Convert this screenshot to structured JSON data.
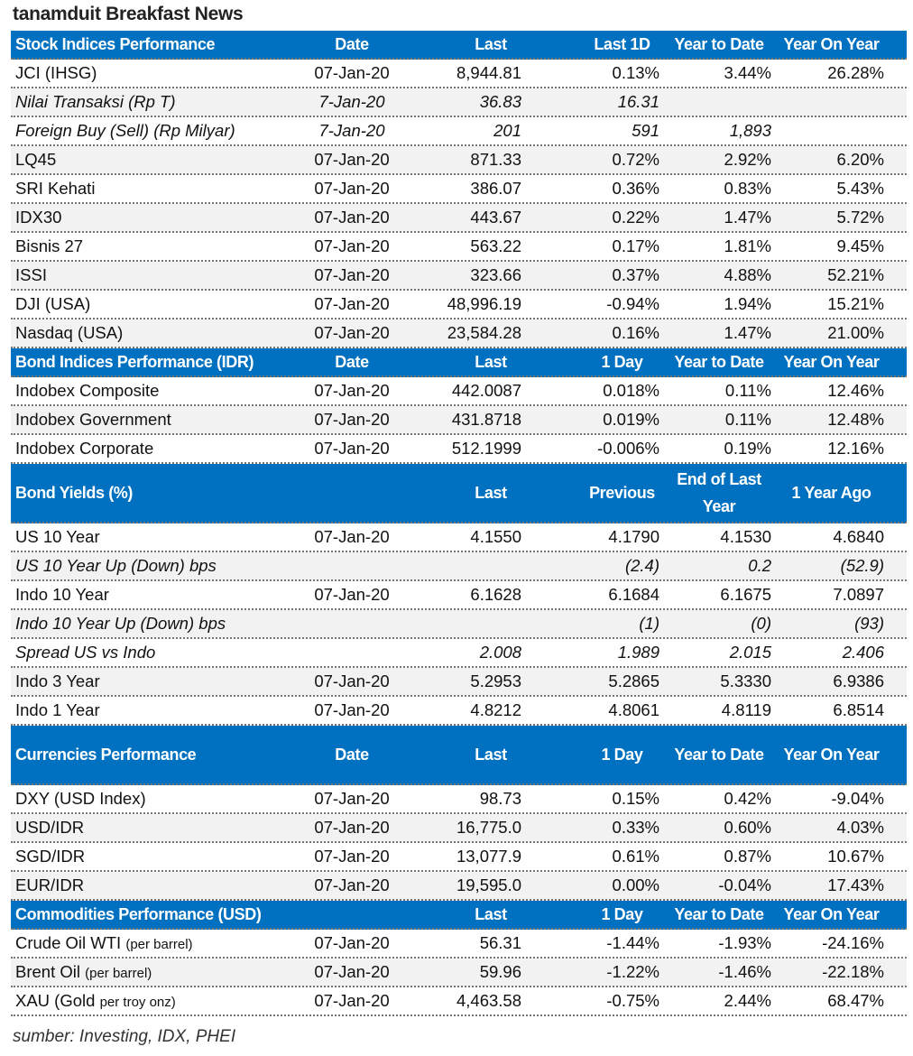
{
  "title": "tanamduit Breakfast News",
  "accent_color": "#0070c0",
  "sections": [
    {
      "header": [
        "Stock Indices Performance",
        "Date",
        "Last",
        "Last 1D",
        "Year to Date",
        "Year On Year"
      ],
      "header_height": "short",
      "rows": [
        {
          "cells": [
            "JCI (IHSG)",
            "07-Jan-20",
            "8,944.81",
            "0.13%",
            "3.44%",
            "26.28%"
          ]
        },
        {
          "italic": true,
          "cells": [
            "Nilai Transaksi (Rp T)",
            "7-Jan-20",
            "36.83",
            "16.31",
            "",
            ""
          ]
        },
        {
          "italic": true,
          "cells": [
            "Foreign Buy (Sell) (Rp Milyar)",
            "7-Jan-20",
            "201",
            "591",
            "1,893",
            ""
          ]
        },
        {
          "cells": [
            "LQ45",
            "07-Jan-20",
            "871.33",
            "0.72%",
            "2.92%",
            "6.20%"
          ]
        },
        {
          "cells": [
            "SRI Kehati",
            "07-Jan-20",
            "386.07",
            "0.36%",
            "0.83%",
            "5.43%"
          ]
        },
        {
          "cells": [
            "IDX30",
            "07-Jan-20",
            "443.67",
            "0.22%",
            "1.47%",
            "5.72%"
          ]
        },
        {
          "cells": [
            "Bisnis 27",
            "07-Jan-20",
            "563.22",
            "0.17%",
            "1.81%",
            "9.45%"
          ]
        },
        {
          "cells": [
            "ISSI",
            "07-Jan-20",
            "323.66",
            "0.37%",
            "4.88%",
            "52.21%"
          ]
        },
        {
          "cells": [
            "DJI (USA)",
            "07-Jan-20",
            "48,996.19",
            "-0.94%",
            "1.94%",
            "15.21%"
          ]
        },
        {
          "cells": [
            "Nasdaq (USA)",
            "07-Jan-20",
            "23,584.28",
            "0.16%",
            "1.47%",
            "21.00%"
          ]
        }
      ]
    },
    {
      "header": [
        "Bond Indices Performance (IDR)",
        "Date",
        "Last",
        "1 Day",
        "Year to Date",
        "Year On Year"
      ],
      "header_height": "short",
      "rows": [
        {
          "cells": [
            "Indobex Composite",
            "07-Jan-20",
            "442.0087",
            "0.018%",
            "0.11%",
            "12.46%"
          ]
        },
        {
          "cells": [
            "Indobex Government",
            "07-Jan-20",
            "431.8718",
            "0.019%",
            "0.11%",
            "12.48%"
          ]
        },
        {
          "cells": [
            "Indobex Corporate",
            "07-Jan-20",
            "512.1999",
            "-0.006%",
            "0.19%",
            "12.16%"
          ]
        }
      ]
    },
    {
      "header": [
        "Bond Yields (%)",
        "",
        "Last",
        "Previous",
        "End of Last Year",
        "1 Year Ago"
      ],
      "header_height": "tall",
      "rows": [
        {
          "cells": [
            "US 10 Year",
            "07-Jan-20",
            "4.1550",
            "4.1790",
            "4.1530",
            "4.6840"
          ]
        },
        {
          "italic": true,
          "cells": [
            "US 10 Year Up (Down) bps",
            "",
            "",
            "(2.4)",
            "0.2",
            "(52.9)"
          ]
        },
        {
          "cells": [
            "Indo 10 Year",
            "07-Jan-20",
            "6.1628",
            "6.1684",
            "6.1675",
            "7.0897"
          ]
        },
        {
          "italic": true,
          "cells": [
            "Indo 10 Year Up (Down) bps",
            "",
            "",
            "(1)",
            "(0)",
            "(93)"
          ]
        },
        {
          "italic": true,
          "cells": [
            "Spread US vs Indo",
            "",
            "2.008",
            "1.989",
            "2.015",
            "2.406"
          ]
        },
        {
          "cells": [
            "Indo 3 Year",
            "07-Jan-20",
            "5.2953",
            "5.2865",
            "5.3330",
            "6.9386"
          ]
        },
        {
          "cells": [
            "Indo 1 Year",
            "07-Jan-20",
            "4.8212",
            "4.8061",
            "4.8119",
            "6.8514"
          ]
        }
      ]
    },
    {
      "header": [
        "Currencies Performance",
        "Date",
        "Last",
        "1 Day",
        "Year to Date",
        "Year On Year"
      ],
      "header_height": "tall",
      "rows": [
        {
          "cells": [
            "DXY (USD Index)",
            "07-Jan-20",
            "98.73",
            "0.15%",
            "0.42%",
            "-9.04%"
          ]
        },
        {
          "cells": [
            "USD/IDR",
            "07-Jan-20",
            "16,775.0",
            "0.33%",
            "0.60%",
            "4.03%"
          ]
        },
        {
          "cells": [
            "SGD/IDR",
            "07-Jan-20",
            "13,077.9",
            "0.61%",
            "0.87%",
            "10.67%"
          ]
        },
        {
          "cells": [
            "EUR/IDR",
            "07-Jan-20",
            "19,595.0",
            "0.00%",
            "-0.04%",
            "17.43%"
          ]
        }
      ]
    },
    {
      "header": [
        "Commodities Performance (USD)",
        "",
        "Last",
        "1 Day",
        "Year to Date",
        "Year On Year"
      ],
      "header_height": "short",
      "rows": [
        {
          "cells": [
            "Crude Oil WTI",
            "07-Jan-20",
            "56.31",
            "-1.44%",
            "-1.93%",
            "-24.16%"
          ],
          "note": "(per barrel)"
        },
        {
          "cells": [
            "Brent Oil",
            "07-Jan-20",
            "59.96",
            "-1.22%",
            "-1.46%",
            "-22.18%"
          ],
          "note": "(per barrel)"
        },
        {
          "cells": [
            "XAU (Gold",
            "07-Jan-20",
            "4,463.58",
            "-0.75%",
            "2.44%",
            "68.47%"
          ],
          "note": "per troy onz)"
        }
      ]
    }
  ],
  "footnote": "sumber: Investing, IDX, PHEI"
}
